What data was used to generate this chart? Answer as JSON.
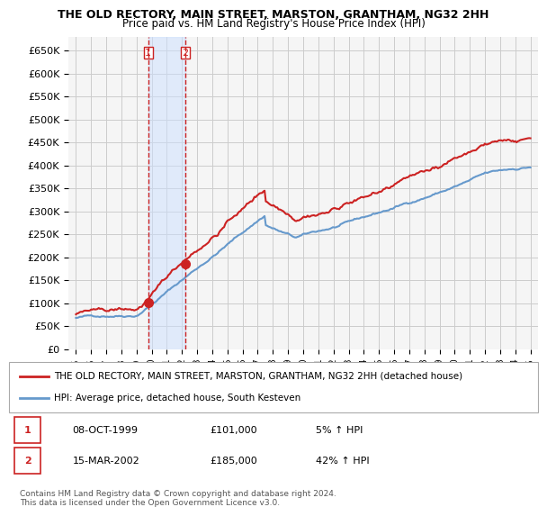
{
  "title": "THE OLD RECTORY, MAIN STREET, MARSTON, GRANTHAM, NG32 2HH",
  "subtitle": "Price paid vs. HM Land Registry's House Price Index (HPI)",
  "legend_line1": "THE OLD RECTORY, MAIN STREET, MARSTON, GRANTHAM, NG32 2HH (detached house)",
  "legend_line2": "HPI: Average price, detached house, South Kesteven",
  "transaction1_date": "08-OCT-1999",
  "transaction1_price": "£101,000",
  "transaction1_change": "5% ↑ HPI",
  "transaction1_x": 1999.77,
  "transaction1_y": 101000,
  "transaction2_date": "15-MAR-2002",
  "transaction2_price": "£185,000",
  "transaction2_change": "42% ↑ HPI",
  "transaction2_x": 2002.21,
  "transaction2_y": 185000,
  "footer": "Contains HM Land Registry data © Crown copyright and database right 2024.\nThis data is licensed under the Open Government Licence v3.0.",
  "hpi_color": "#6699cc",
  "price_color": "#cc2222",
  "marker_color": "#cc2222",
  "shading_color": "#cce0ff",
  "vline_color": "#cc2222",
  "background_color": "#ffffff",
  "grid_color": "#cccccc",
  "ylim": [
    0,
    680000
  ],
  "xlim": [
    1994.5,
    2025.5
  ]
}
